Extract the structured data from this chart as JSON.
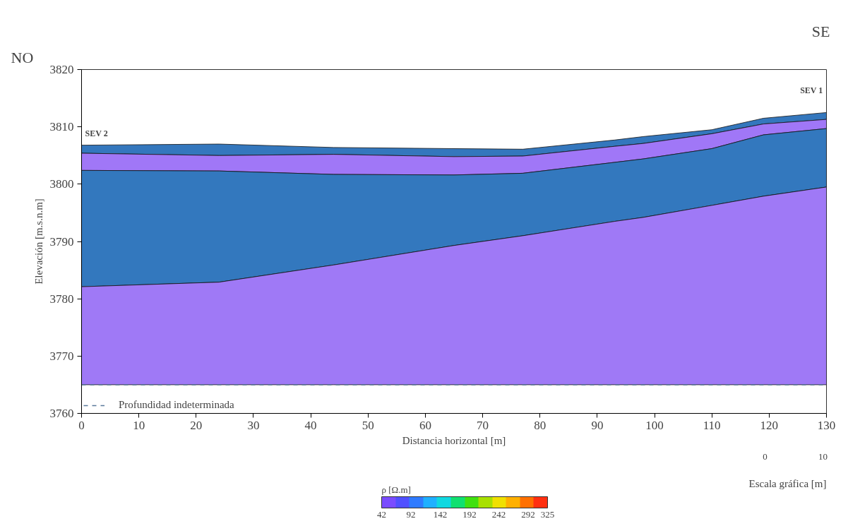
{
  "chart_data": {
    "type": "area",
    "xlabel": "Distancia horizontal [m]",
    "ylabel": "Elevación [m.s.n.m]",
    "x": [
      0,
      24,
      44,
      65,
      77,
      93,
      98,
      110,
      119,
      130
    ],
    "series": [
      {
        "color": "#3477bd",
        "values": [
          3806.8,
          3807.0,
          3806.4,
          3806.2,
          3806.1,
          3807.7,
          3808.3,
          3809.5,
          3811.5,
          3812.5
        ]
      },
      {
        "color": "#a077f7",
        "values": [
          3805.4,
          3805.0,
          3805.2,
          3804.8,
          3804.9,
          3806.6,
          3807.1,
          3808.8,
          3810.5,
          3811.3
        ]
      },
      {
        "color": "#3378be",
        "values": [
          3802.4,
          3802.3,
          3801.7,
          3801.6,
          3801.9,
          3803.8,
          3804.4,
          3806.2,
          3808.6,
          3809.7
        ]
      },
      {
        "color": "#9f79f6",
        "values": [
          3782.1,
          3782.9,
          3785.9,
          3789.3,
          3791.0,
          3793.5,
          3794.2,
          3796.3,
          3797.9,
          3799.5
        ]
      },
      {
        "type": "line",
        "name": "Profundidad indeterminada",
        "color": "#5a7a9a",
        "line_style": "dashed",
        "values": [
          3765,
          3765,
          3765,
          3765,
          3765,
          3765,
          3765,
          3765,
          3765,
          3765
        ]
      }
    ],
    "xlim": [
      0,
      130
    ],
    "ylim": [
      3760,
      3820
    ],
    "xticks": [
      0,
      10,
      20,
      30,
      40,
      50,
      60,
      70,
      80,
      90,
      100,
      110,
      120,
      130
    ],
    "yticks": [
      3760,
      3770,
      3780,
      3790,
      3800,
      3810,
      3820
    ],
    "grid": false,
    "legend": "bottom left",
    "clabel": "ρ [Ω.m]",
    "clim": [
      42,
      325
    ],
    "cticks": [
      42,
      92,
      142,
      192,
      242,
      292,
      325
    ],
    "annotations": [
      "NO",
      "SE",
      "SEV 2",
      "SEV 1",
      "Escala gráfica [m]",
      "0",
      "10"
    ]
  }
}
